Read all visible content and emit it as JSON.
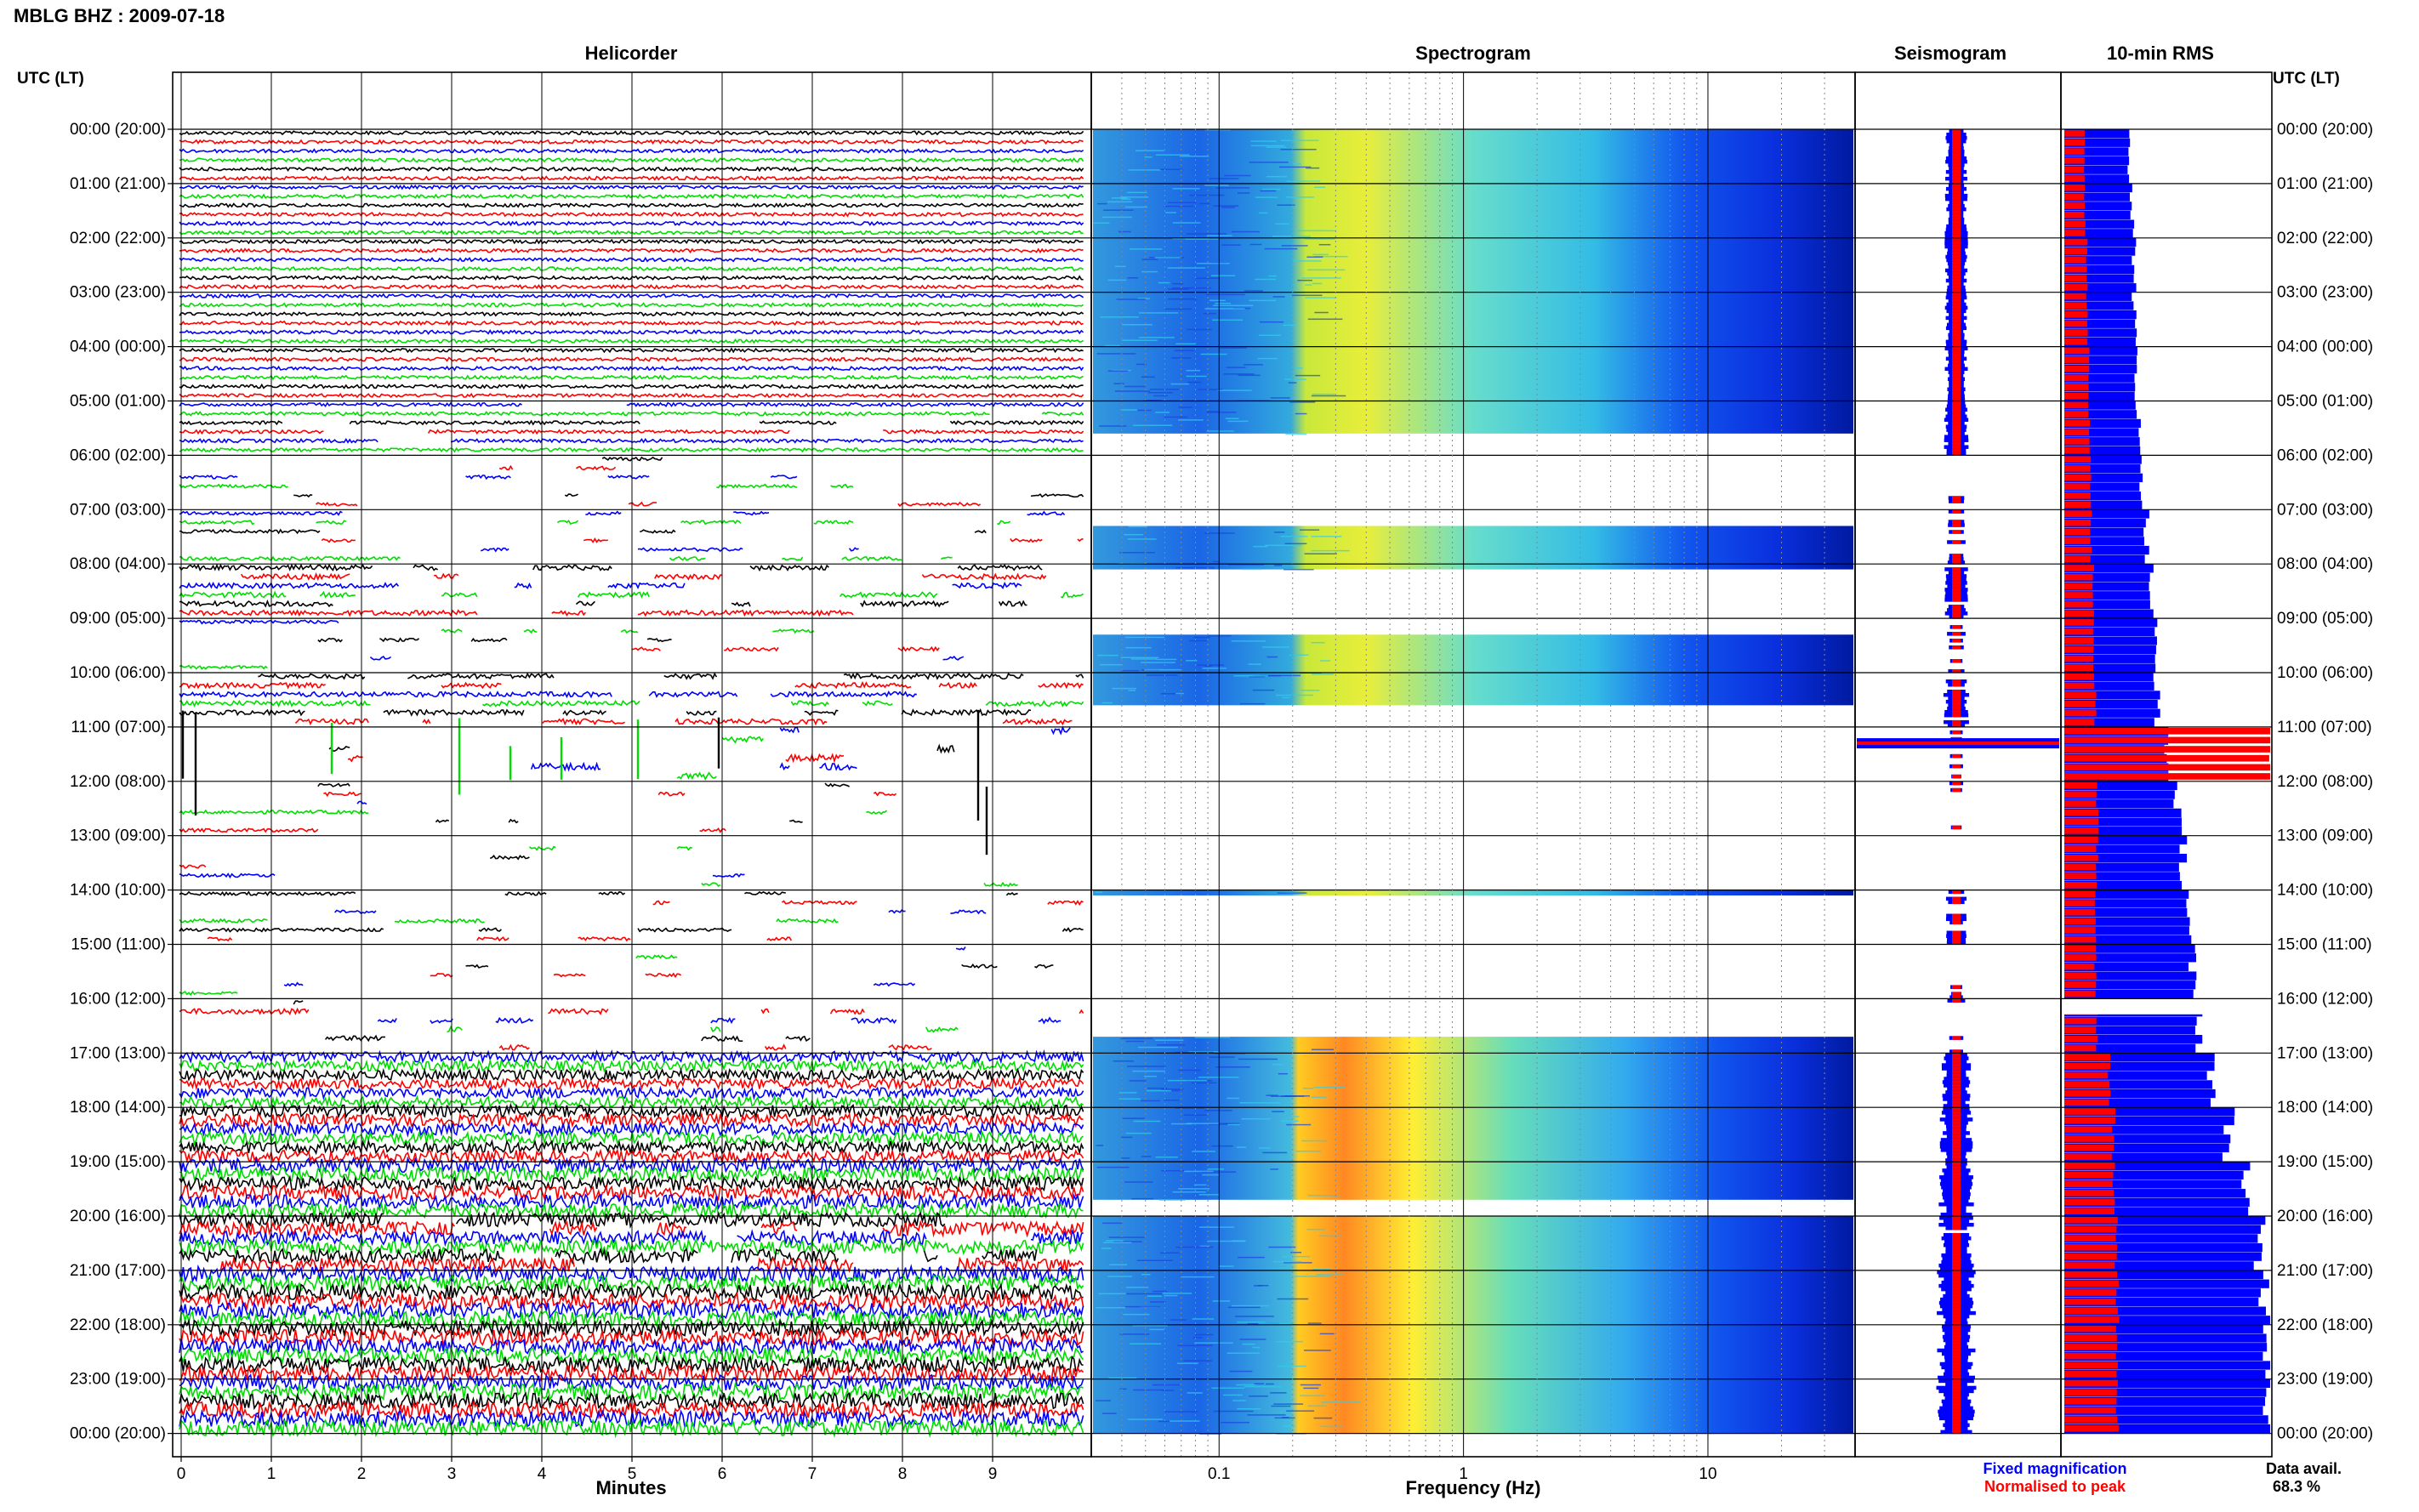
{
  "header": {
    "title": "MBLG BHZ : 2009-07-18",
    "left_axis_title": "UTC (LT)",
    "right_axis_title": "UTC (LT)"
  },
  "panels": {
    "helicorder": "Helicorder",
    "spectrogram": "Spectrogram",
    "seismogram": "Seismogram",
    "rms": "10-min RMS"
  },
  "footer": {
    "x_label_helicorder": "Minutes",
    "x_label_spectrogram": "Frequency (Hz)",
    "legend_fixed": "Fixed magnification",
    "legend_norm": "Normalised to peak",
    "data_avail_label": "Data avail.",
    "data_avail_value": "68.3 %"
  },
  "colors": {
    "trace_cycle": [
      "#000000",
      "#ff0000",
      "#0000ff",
      "#00dd00"
    ],
    "fixed": "#0000ff",
    "normalised": "#ff0000",
    "spectro_low": "#0033ee",
    "spectro_mid": "#33ccdd",
    "spectro_high": "#ffee22",
    "spectro_peak": "#ff7700"
  },
  "chart_data": {
    "type": "heatmap",
    "time_labels": [
      "00:00 (20:00)",
      "01:00 (21:00)",
      "02:00 (22:00)",
      "03:00 (23:00)",
      "04:00 (00:00)",
      "05:00 (01:00)",
      "06:00 (02:00)",
      "07:00 (03:00)",
      "08:00 (04:00)",
      "09:00 (05:00)",
      "10:00 (06:00)",
      "11:00 (07:00)",
      "12:00 (08:00)",
      "13:00 (09:00)",
      "14:00 (10:00)",
      "15:00 (11:00)",
      "16:00 (12:00)",
      "17:00 (13:00)",
      "18:00 (14:00)",
      "19:00 (15:00)",
      "20:00 (16:00)",
      "21:00 (17:00)",
      "22:00 (18:00)",
      "23:00 (19:00)",
      "00:00 (20:00)"
    ],
    "helicorder_x_ticks": [
      "0",
      "1",
      "2",
      "3",
      "4",
      "5",
      "6",
      "7",
      "8",
      "9"
    ],
    "helicorder_xlim": [
      0,
      10
    ],
    "spectrogram_x_ticks": [
      "0.1",
      "1",
      "10"
    ],
    "spectrogram_xlim": [
      0.03,
      40
    ],
    "spectrogram_log_x": true,
    "hourly_data_completeness": [
      1,
      1,
      1,
      1,
      1,
      0.95,
      0.25,
      0.35,
      0.6,
      0.3,
      0.75,
      0.2,
      0.2,
      0.15,
      0.4,
      0.15,
      0.35,
      1,
      1,
      1,
      0.9,
      1,
      1,
      1
    ],
    "rms_fixed_per_hour": [
      0.32,
      0.33,
      0.34,
      0.34,
      0.35,
      0.36,
      0.38,
      0.4,
      0.42,
      0.44,
      0.45,
      0.5,
      0.55,
      0.58,
      0.6,
      0.62,
      0.66,
      0.72,
      0.8,
      0.88,
      0.94,
      0.98,
      1.0,
      1.0
    ],
    "rms_normalised_per_hour": [
      0.1,
      0.1,
      0.11,
      0.11,
      0.12,
      0.12,
      0.13,
      0.13,
      0.14,
      0.14,
      0.15,
      1.0,
      0.16,
      0.16,
      0.15,
      0.15,
      0.16,
      0.22,
      0.24,
      0.24,
      0.25,
      0.26,
      0.26,
      0.26
    ],
    "event_hour": 11.3
  }
}
